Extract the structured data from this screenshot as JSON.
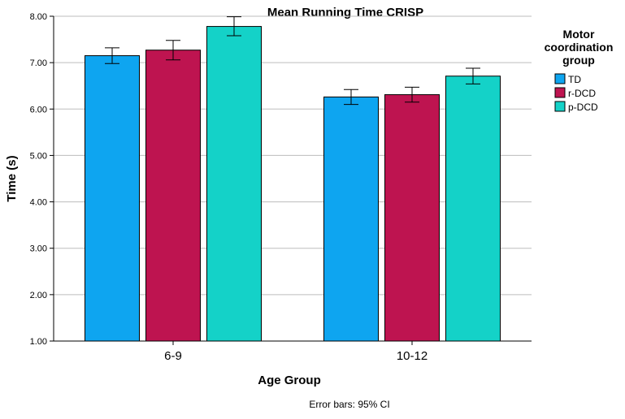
{
  "chart_data": {
    "type": "bar",
    "title": "Mean Running Time CRISP",
    "xlabel": "Age Group",
    "ylabel": "Time (s)",
    "ylim": [
      1.0,
      8.0
    ],
    "yticks": [
      1.0,
      2.0,
      3.0,
      4.0,
      5.0,
      6.0,
      7.0,
      8.0
    ],
    "ytick_labels": [
      "1.00",
      "2.00",
      "3.00",
      "4.00",
      "5.00",
      "6.00",
      "7.00",
      "8.00"
    ],
    "grid": true,
    "categories": [
      "6-9",
      "10-12"
    ],
    "series": [
      {
        "name": "TD",
        "color": "#0ea5f0",
        "values": [
          7.15,
          6.26
        ],
        "ci_low": [
          6.98,
          6.1
        ],
        "ci_high": [
          7.32,
          6.42
        ]
      },
      {
        "name": "r-DCD",
        "color": "#be1450",
        "values": [
          7.27,
          6.31
        ],
        "ci_low": [
          7.06,
          6.15
        ],
        "ci_high": [
          7.48,
          6.47
        ]
      },
      {
        "name": "p-DCD",
        "color": "#14d2c8",
        "values": [
          7.78,
          6.71
        ],
        "ci_low": [
          7.58,
          6.54
        ],
        "ci_high": [
          7.99,
          6.88
        ]
      }
    ],
    "legend": {
      "title_lines": [
        "Motor",
        "coordination",
        "group"
      ],
      "position": "right"
    },
    "footnote": "Error bars: 95% CI"
  }
}
